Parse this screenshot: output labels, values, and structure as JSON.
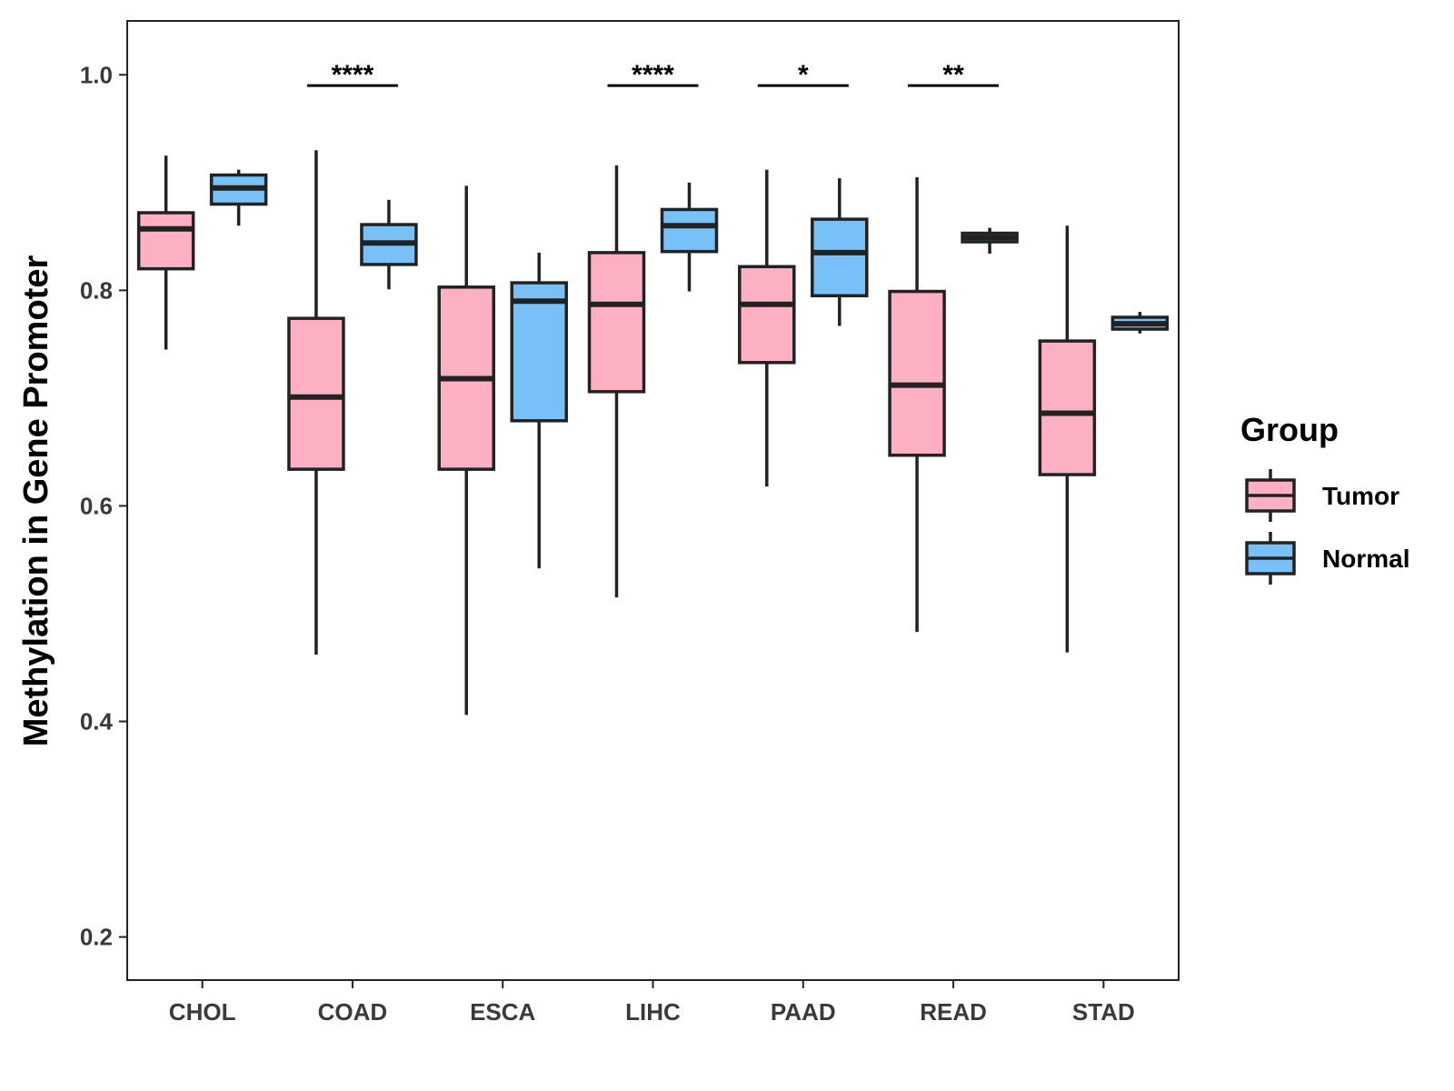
{
  "chart_data": {
    "type": "boxplot",
    "title": "",
    "xlabel": "",
    "ylabel": "Methylation in Gene Promoter",
    "ylim": [
      0.16,
      1.05
    ],
    "yticks": [
      0.2,
      0.4,
      0.6,
      0.8,
      1.0
    ],
    "ytick_labels": [
      "0.2",
      "0.4",
      "0.6",
      "0.8",
      "1.0"
    ],
    "categories": [
      "CHOL",
      "COAD",
      "ESCA",
      "LIHC",
      "PAAD",
      "READ",
      "STAD"
    ],
    "legend": {
      "title": "Group",
      "position": "right",
      "entries": [
        {
          "name": "Tumor",
          "color": "#FDB0C2"
        },
        {
          "name": "Normal",
          "color": "#78C0F8"
        }
      ]
    },
    "series": [
      {
        "name": "Tumor",
        "color": "#FDB0C2",
        "boxes": [
          {
            "min": 0.745,
            "q1": 0.82,
            "median": 0.857,
            "q3": 0.872,
            "max": 0.925
          },
          {
            "min": 0.462,
            "q1": 0.634,
            "median": 0.701,
            "q3": 0.774,
            "max": 0.93
          },
          {
            "min": 0.406,
            "q1": 0.634,
            "median": 0.718,
            "q3": 0.803,
            "max": 0.897
          },
          {
            "min": 0.515,
            "q1": 0.706,
            "median": 0.787,
            "q3": 0.835,
            "max": 0.916
          },
          {
            "min": 0.618,
            "q1": 0.733,
            "median": 0.787,
            "q3": 0.822,
            "max": 0.912
          },
          {
            "min": 0.483,
            "q1": 0.647,
            "median": 0.712,
            "q3": 0.799,
            "max": 0.905
          },
          {
            "min": 0.464,
            "q1": 0.629,
            "median": 0.686,
            "q3": 0.753,
            "max": 0.86
          }
        ]
      },
      {
        "name": "Normal",
        "color": "#78C0F8",
        "boxes": [
          {
            "min": 0.86,
            "q1": 0.88,
            "median": 0.895,
            "q3": 0.907,
            "max": 0.912
          },
          {
            "min": 0.801,
            "q1": 0.824,
            "median": 0.844,
            "q3": 0.861,
            "max": 0.884
          },
          {
            "min": 0.542,
            "q1": 0.679,
            "median": 0.79,
            "q3": 0.807,
            "max": 0.835
          },
          {
            "min": 0.799,
            "q1": 0.836,
            "median": 0.86,
            "q3": 0.875,
            "max": 0.9
          },
          {
            "min": 0.767,
            "q1": 0.795,
            "median": 0.835,
            "q3": 0.866,
            "max": 0.904
          },
          {
            "min": 0.834,
            "q1": 0.845,
            "median": 0.849,
            "q3": 0.853,
            "max": 0.858
          },
          {
            "min": 0.76,
            "q1": 0.764,
            "median": 0.769,
            "q3": 0.775,
            "max": 0.78
          }
        ]
      }
    ],
    "annotations": [
      {
        "category": "COAD",
        "label": "****",
        "y": 0.99
      },
      {
        "category": "LIHC",
        "label": "****",
        "y": 0.99
      },
      {
        "category": "PAAD",
        "label": "*",
        "y": 0.99
      },
      {
        "category": "READ",
        "label": "**",
        "y": 0.99
      }
    ]
  }
}
